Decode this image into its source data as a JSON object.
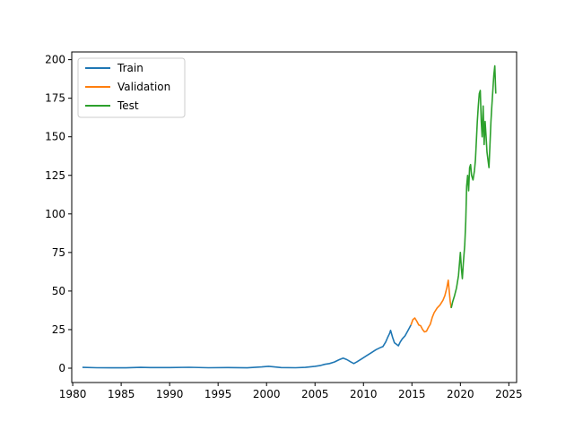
{
  "chart_data": {
    "type": "line",
    "title": "",
    "xlabel": "",
    "ylabel": "",
    "xlim": [
      1979.9,
      2025.8
    ],
    "ylim": [
      -9.3,
      205
    ],
    "x_ticks": [
      1980,
      1985,
      1990,
      1995,
      2000,
      2005,
      2010,
      2015,
      2020,
      2025
    ],
    "y_ticks": [
      0,
      25,
      50,
      75,
      100,
      125,
      150,
      175,
      200
    ],
    "grid": false,
    "legend": {
      "position": "top-left"
    },
    "series": [
      {
        "name": "Train",
        "color": "#1f77b4",
        "x": [
          1981.0,
          1982.5,
          1984.0,
          1985.5,
          1987.0,
          1988.0,
          1990.0,
          1992.0,
          1994.0,
          1996.0,
          1998.0,
          1999.5,
          2000.2,
          2000.7,
          2001.5,
          2003.0,
          2004.0,
          2005.0,
          2005.6,
          2006.0,
          2006.5,
          2007.0,
          2007.5,
          2007.9,
          2008.3,
          2008.7,
          2009.0,
          2009.3,
          2009.8,
          2010.3,
          2010.8,
          2011.3,
          2011.8,
          2012.0,
          2012.3,
          2012.5,
          2012.7,
          2012.8,
          2013.0,
          2013.2,
          2013.4,
          2013.6,
          2013.8,
          2014.0,
          2014.3,
          2014.6,
          2014.9
        ],
        "y": [
          0.5,
          0.3,
          0.2,
          0.2,
          0.5,
          0.4,
          0.4,
          0.6,
          0.3,
          0.4,
          0.2,
          0.8,
          1.2,
          0.9,
          0.4,
          0.3,
          0.5,
          1.2,
          1.8,
          2.5,
          3.0,
          4.0,
          5.5,
          6.5,
          5.5,
          4.0,
          3.0,
          4.0,
          6.0,
          8.0,
          10.0,
          12.0,
          13.5,
          14.0,
          17.0,
          20.0,
          22.5,
          24.5,
          20.0,
          16.5,
          15.5,
          14.5,
          17.0,
          19.0,
          21.0,
          24.5,
          28.0
        ]
      },
      {
        "name": "Validation",
        "color": "#ff7f0e",
        "x": [
          2014.9,
          2015.1,
          2015.3,
          2015.5,
          2015.7,
          2015.9,
          2016.1,
          2016.3,
          2016.5,
          2016.7,
          2016.9,
          2017.1,
          2017.3,
          2017.6,
          2017.9,
          2018.2,
          2018.4,
          2018.6,
          2018.75,
          2018.85,
          2018.95,
          2019.05
        ],
        "y": [
          28.0,
          31.5,
          32.5,
          30.5,
          28.0,
          27.5,
          25.0,
          23.5,
          24.0,
          26.5,
          28.5,
          33.0,
          36.0,
          39.0,
          41.0,
          44.0,
          47.0,
          52.0,
          57.0,
          50.0,
          43.0,
          39.0
        ]
      },
      {
        "name": "Test",
        "color": "#2ca02c",
        "x": [
          2019.05,
          2019.2,
          2019.4,
          2019.6,
          2019.8,
          2020.0,
          2020.1,
          2020.2,
          2020.3,
          2020.45,
          2020.55,
          2020.65,
          2020.75,
          2020.85,
          2020.95,
          2021.05,
          2021.15,
          2021.3,
          2021.45,
          2021.55,
          2021.65,
          2021.75,
          2021.85,
          2021.95,
          2022.05,
          2022.15,
          2022.25,
          2022.35,
          2022.45,
          2022.55,
          2022.65,
          2022.75,
          2022.85,
          2022.95,
          2023.05,
          2023.15,
          2023.25,
          2023.35,
          2023.45,
          2023.55,
          2023.65
        ],
        "y": [
          39.0,
          43.0,
          47.0,
          52.0,
          60.0,
          75.0,
          65.0,
          58.0,
          68.0,
          80.0,
          95.0,
          118.0,
          125.0,
          115.0,
          130.0,
          132.0,
          125.0,
          122.0,
          128.0,
          135.0,
          148.0,
          160.0,
          170.0,
          178.0,
          180.0,
          160.0,
          150.0,
          170.0,
          145.0,
          160.0,
          150.0,
          140.0,
          135.0,
          130.0,
          145.0,
          160.0,
          170.0,
          180.0,
          190.0,
          196.0,
          178.0
        ]
      }
    ]
  }
}
